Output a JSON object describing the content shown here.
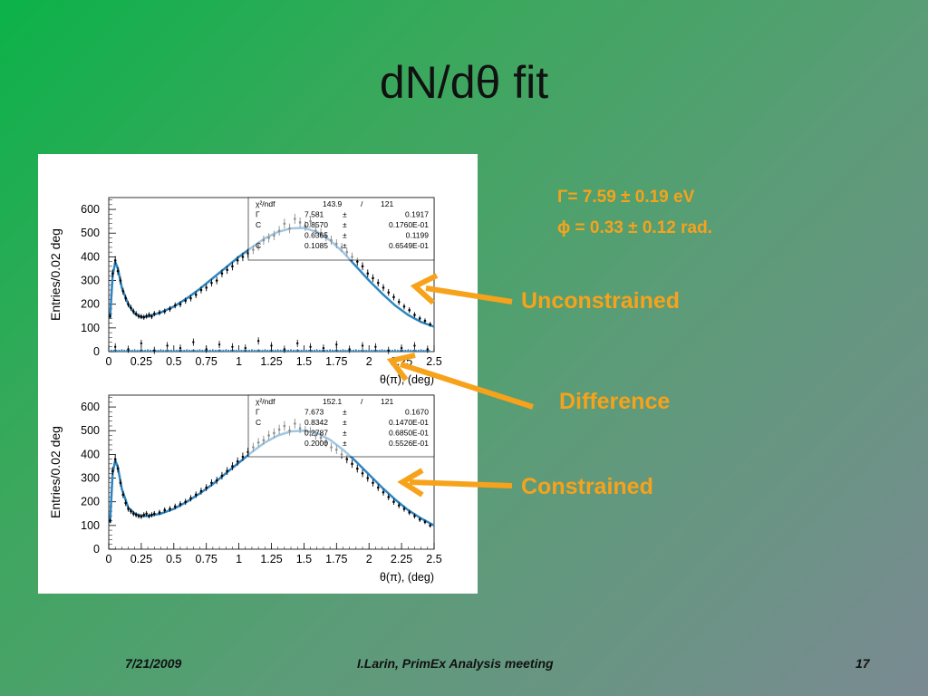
{
  "title": "dN/dθ fit",
  "results": {
    "gamma": "Γ=  7.59 ± 0.19 eV",
    "phi": "ϕ = 0.33 ± 0.12 rad."
  },
  "labels": {
    "unconstrained": "Unconstrained",
    "difference": "Difference",
    "constrained": "Constrained"
  },
  "footer": {
    "date": "7/21/2009",
    "center": "I.Larin,    PrimEx Analysis meeting",
    "page": "17"
  },
  "colors": {
    "accent": "#f7a21b",
    "fit_curve": "#2e86c1",
    "difference_band": "#2e86c1"
  },
  "chart_data": [
    {
      "type": "scatter",
      "xlabel": "θ(π),   (deg)",
      "ylabel": "Entries/0.02 deg",
      "xlim": [
        0,
        2.5
      ],
      "ylim": [
        0,
        650
      ],
      "x_ticks": [
        "0",
        "0.25",
        "0.5",
        "0.75",
        "1",
        "1.25",
        "1.5",
        "1.75",
        "2",
        "2.25",
        "2.5"
      ],
      "y_ticks": [
        "0",
        "100",
        "200",
        "300",
        "400",
        "500",
        "600"
      ],
      "stats": {
        "header": [
          "χ²/ndf",
          "143.9",
          "/",
          "121"
        ],
        "rows": [
          [
            "Γ",
            "7.581",
            "±",
            "0.1917"
          ],
          [
            "C",
            "0.8570",
            "±",
            "0.1760E-01"
          ],
          [
            "",
            "0.6365",
            "±",
            "0.1199"
          ],
          [
            "C",
            "0.1085",
            "±",
            "0.6549E-01"
          ]
        ]
      },
      "fit_curve": {
        "x": [
          0.01,
          0.03,
          0.05,
          0.07,
          0.1,
          0.15,
          0.2,
          0.25,
          0.3,
          0.4,
          0.5,
          0.6,
          0.7,
          0.8,
          0.9,
          1.0,
          1.1,
          1.2,
          1.3,
          1.4,
          1.5,
          1.6,
          1.7,
          1.8,
          1.9,
          2.0,
          2.1,
          2.2,
          2.3,
          2.4,
          2.5
        ],
        "y": [
          140,
          320,
          378,
          350,
          270,
          200,
          160,
          145,
          148,
          165,
          190,
          225,
          265,
          310,
          355,
          400,
          440,
          478,
          505,
          520,
          522,
          505,
          470,
          420,
          360,
          300,
          245,
          195,
          155,
          125,
          105
        ]
      },
      "data_points": {
        "x": [
          0.01,
          0.03,
          0.05,
          0.07,
          0.09,
          0.11,
          0.13,
          0.15,
          0.17,
          0.19,
          0.21,
          0.23,
          0.25,
          0.27,
          0.29,
          0.31,
          0.33,
          0.35,
          0.39,
          0.43,
          0.47,
          0.51,
          0.55,
          0.59,
          0.63,
          0.67,
          0.71,
          0.75,
          0.79,
          0.83,
          0.87,
          0.91,
          0.95,
          0.99,
          1.03,
          1.07,
          1.11,
          1.15,
          1.19,
          1.23,
          1.27,
          1.31,
          1.35,
          1.39,
          1.43,
          1.47,
          1.51,
          1.55,
          1.59,
          1.63,
          1.67,
          1.71,
          1.75,
          1.79,
          1.83,
          1.87,
          1.91,
          1.95,
          1.99,
          2.03,
          2.07,
          2.11,
          2.15,
          2.19,
          2.23,
          2.27,
          2.31,
          2.35,
          2.39,
          2.43,
          2.47
        ],
        "y": [
          150,
          330,
          385,
          340,
          300,
          255,
          225,
          200,
          185,
          170,
          160,
          150,
          148,
          145,
          150,
          155,
          148,
          160,
          165,
          170,
          180,
          195,
          200,
          215,
          225,
          240,
          260,
          270,
          290,
          300,
          330,
          345,
          360,
          385,
          400,
          415,
          430,
          445,
          470,
          480,
          490,
          510,
          540,
          520,
          560,
          545,
          530,
          550,
          510,
          500,
          485,
          470,
          455,
          440,
          420,
          400,
          380,
          360,
          330,
          310,
          290,
          270,
          250,
          230,
          210,
          190,
          175,
          155,
          140,
          130,
          115
        ]
      },
      "difference_points": {
        "x": [
          0.05,
          0.15,
          0.25,
          0.35,
          0.45,
          0.55,
          0.65,
          0.75,
          0.85,
          0.95,
          1.05,
          1.15,
          1.25,
          1.35,
          1.45,
          1.55,
          1.65,
          1.75,
          1.85,
          1.95,
          2.05,
          2.15,
          2.25,
          2.35,
          2.45
        ],
        "y": [
          20,
          10,
          35,
          5,
          25,
          15,
          40,
          10,
          30,
          20,
          15,
          45,
          25,
          10,
          35,
          20,
          15,
          30,
          10,
          25,
          20,
          5,
          15,
          25,
          10
        ]
      }
    },
    {
      "type": "scatter",
      "xlabel": "θ(π),   (deg)",
      "ylabel": "Entries/0.02 deg",
      "xlim": [
        0,
        2.5
      ],
      "ylim": [
        0,
        650
      ],
      "x_ticks": [
        "0",
        "0.25",
        "0.5",
        "0.75",
        "1",
        "1.25",
        "1.5",
        "1.75",
        "2",
        "2.25",
        "2.5"
      ],
      "y_ticks": [
        "0",
        "100",
        "200",
        "300",
        "400",
        "500",
        "600"
      ],
      "stats": {
        "header": [
          "χ²/ndf",
          "152.1",
          "/",
          "121"
        ],
        "rows": [
          [
            "Γ",
            "7.673",
            "±",
            "0.1670"
          ],
          [
            "C",
            "0.8342",
            "±",
            "0.1470E-01"
          ],
          [
            "",
            "0.2787",
            "±",
            "0.6850E-01"
          ],
          [
            "",
            "0.2000",
            "±",
            "0.5526E-01"
          ]
        ]
      },
      "fit_curve": {
        "x": [
          0.01,
          0.03,
          0.05,
          0.07,
          0.1,
          0.15,
          0.2,
          0.25,
          0.3,
          0.4,
          0.5,
          0.6,
          0.7,
          0.8,
          0.9,
          1.0,
          1.1,
          1.2,
          1.3,
          1.4,
          1.5,
          1.6,
          1.7,
          1.8,
          1.9,
          2.0,
          2.1,
          2.2,
          2.3,
          2.4,
          2.5
        ],
        "y": [
          110,
          320,
          375,
          345,
          255,
          175,
          150,
          140,
          140,
          150,
          170,
          200,
          235,
          275,
          320,
          365,
          410,
          450,
          480,
          497,
          500,
          490,
          462,
          420,
          370,
          315,
          260,
          210,
          165,
          130,
          100
        ]
      },
      "data_points": {
        "x": [
          0.01,
          0.03,
          0.05,
          0.07,
          0.09,
          0.11,
          0.13,
          0.15,
          0.17,
          0.19,
          0.21,
          0.23,
          0.25,
          0.27,
          0.29,
          0.31,
          0.33,
          0.35,
          0.39,
          0.43,
          0.47,
          0.51,
          0.55,
          0.59,
          0.63,
          0.67,
          0.71,
          0.75,
          0.79,
          0.83,
          0.87,
          0.91,
          0.95,
          0.99,
          1.03,
          1.07,
          1.11,
          1.15,
          1.19,
          1.23,
          1.27,
          1.31,
          1.35,
          1.39,
          1.43,
          1.47,
          1.51,
          1.55,
          1.59,
          1.63,
          1.67,
          1.71,
          1.75,
          1.79,
          1.83,
          1.87,
          1.91,
          1.95,
          1.99,
          2.03,
          2.07,
          2.11,
          2.15,
          2.19,
          2.23,
          2.27,
          2.31,
          2.35,
          2.39,
          2.43,
          2.47
        ],
        "y": [
          120,
          330,
          380,
          340,
          280,
          230,
          195,
          170,
          160,
          150,
          145,
          140,
          138,
          145,
          150,
          140,
          145,
          150,
          155,
          165,
          170,
          180,
          190,
          200,
          215,
          230,
          245,
          260,
          280,
          290,
          310,
          330,
          350,
          370,
          390,
          410,
          430,
          450,
          460,
          480,
          490,
          505,
          520,
          500,
          530,
          510,
          500,
          495,
          480,
          470,
          450,
          430,
          420,
          400,
          380,
          360,
          340,
          320,
          300,
          280,
          260,
          240,
          220,
          200,
          185,
          170,
          155,
          140,
          125,
          115,
          100
        ]
      }
    }
  ]
}
